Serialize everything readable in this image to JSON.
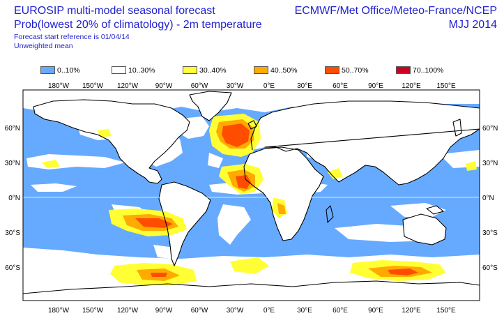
{
  "header": {
    "title": "EUROSIP multi-model seasonal forecast",
    "subtitle": "Prob(lowest 20% of climatology) - 2m temperature",
    "start_reference": "Forecast start reference is 01/04/14",
    "mean_type": "Unweighted mean",
    "centres": "ECMWF/Met Office/Meteo-France/NCEP",
    "period": "MJJ 2014"
  },
  "legend": [
    {
      "label": "0..10%",
      "color": "#66aaff"
    },
    {
      "label": "10..30%",
      "color": "#ffffff"
    },
    {
      "label": "30..40%",
      "color": "#ffff33"
    },
    {
      "label": "40..50%",
      "color": "#ffaa00"
    },
    {
      "label": "50..70%",
      "color": "#ff4d00"
    },
    {
      "label": "70..100%",
      "color": "#cc0022"
    }
  ],
  "map": {
    "lon_labels": [
      "180°W",
      "150°W",
      "120°W",
      "90°W",
      "60°W",
      "30°W",
      "0°E",
      "30°E",
      "60°E",
      "90°E",
      "120°E",
      "150°E"
    ],
    "lat_labels": [
      "60°N",
      "30°N",
      "0°N",
      "30°S",
      "60°S"
    ],
    "ocean_color": "#66aaff",
    "land_color": "#ffffff",
    "coast_color": "#000000"
  }
}
